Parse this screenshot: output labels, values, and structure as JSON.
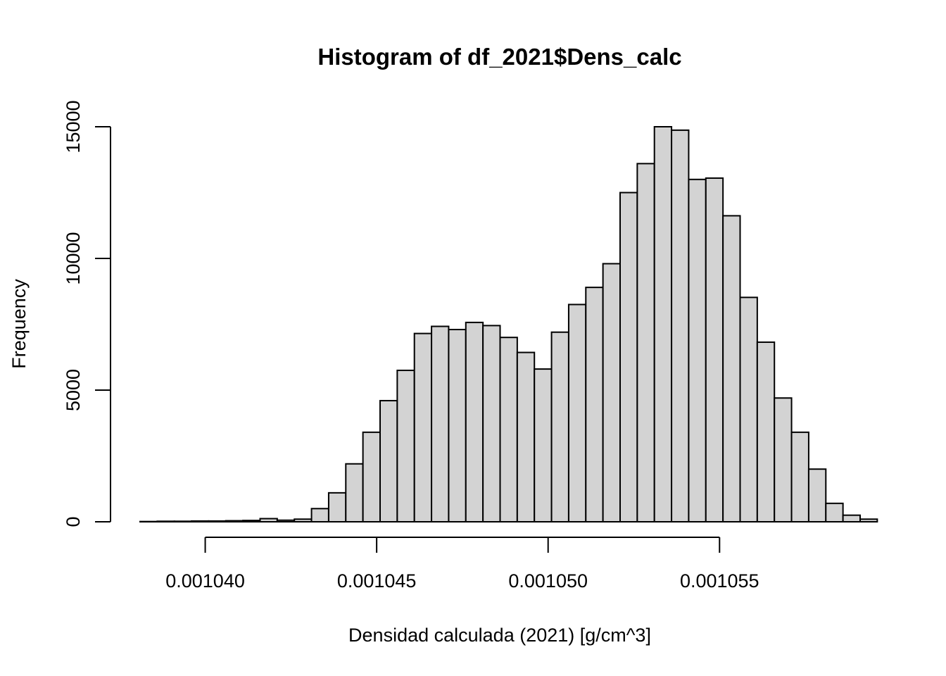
{
  "chart_data": {
    "type": "bar",
    "title": "Histogram of df_2021$Dens_calc",
    "xlabel": "Densidad calculada (2021) [g/cm^3]",
    "ylabel": "Frequency",
    "bar_color": "#d3d3d3",
    "border_color": "#000000",
    "bin_width": 5e-07,
    "bin_start": 0.0010381,
    "xlim": [
      0.0010381,
      0.0010591
    ],
    "ylim": [
      0,
      15000
    ],
    "xticks": [
      {
        "value": 0.00104,
        "label": "0.001040"
      },
      {
        "value": 0.001045,
        "label": "0.001045"
      },
      {
        "value": 0.00105,
        "label": "0.001050"
      },
      {
        "value": 0.001055,
        "label": "0.001055"
      }
    ],
    "yticks": [
      {
        "value": 0,
        "label": "0"
      },
      {
        "value": 5000,
        "label": "5000"
      },
      {
        "value": 10000,
        "label": "10000"
      },
      {
        "value": 15000,
        "label": "15000"
      }
    ],
    "values": [
      10,
      20,
      20,
      30,
      30,
      40,
      50,
      120,
      60,
      100,
      500,
      1100,
      2200,
      3400,
      4600,
      5750,
      7150,
      7420,
      7300,
      7570,
      7450,
      7000,
      6430,
      5800,
      7200,
      8250,
      8900,
      9800,
      12500,
      13600,
      15000,
      14870,
      13000,
      13050,
      11620,
      8520,
      6820,
      4700,
      3400,
      2000,
      700,
      250,
      100
    ]
  }
}
